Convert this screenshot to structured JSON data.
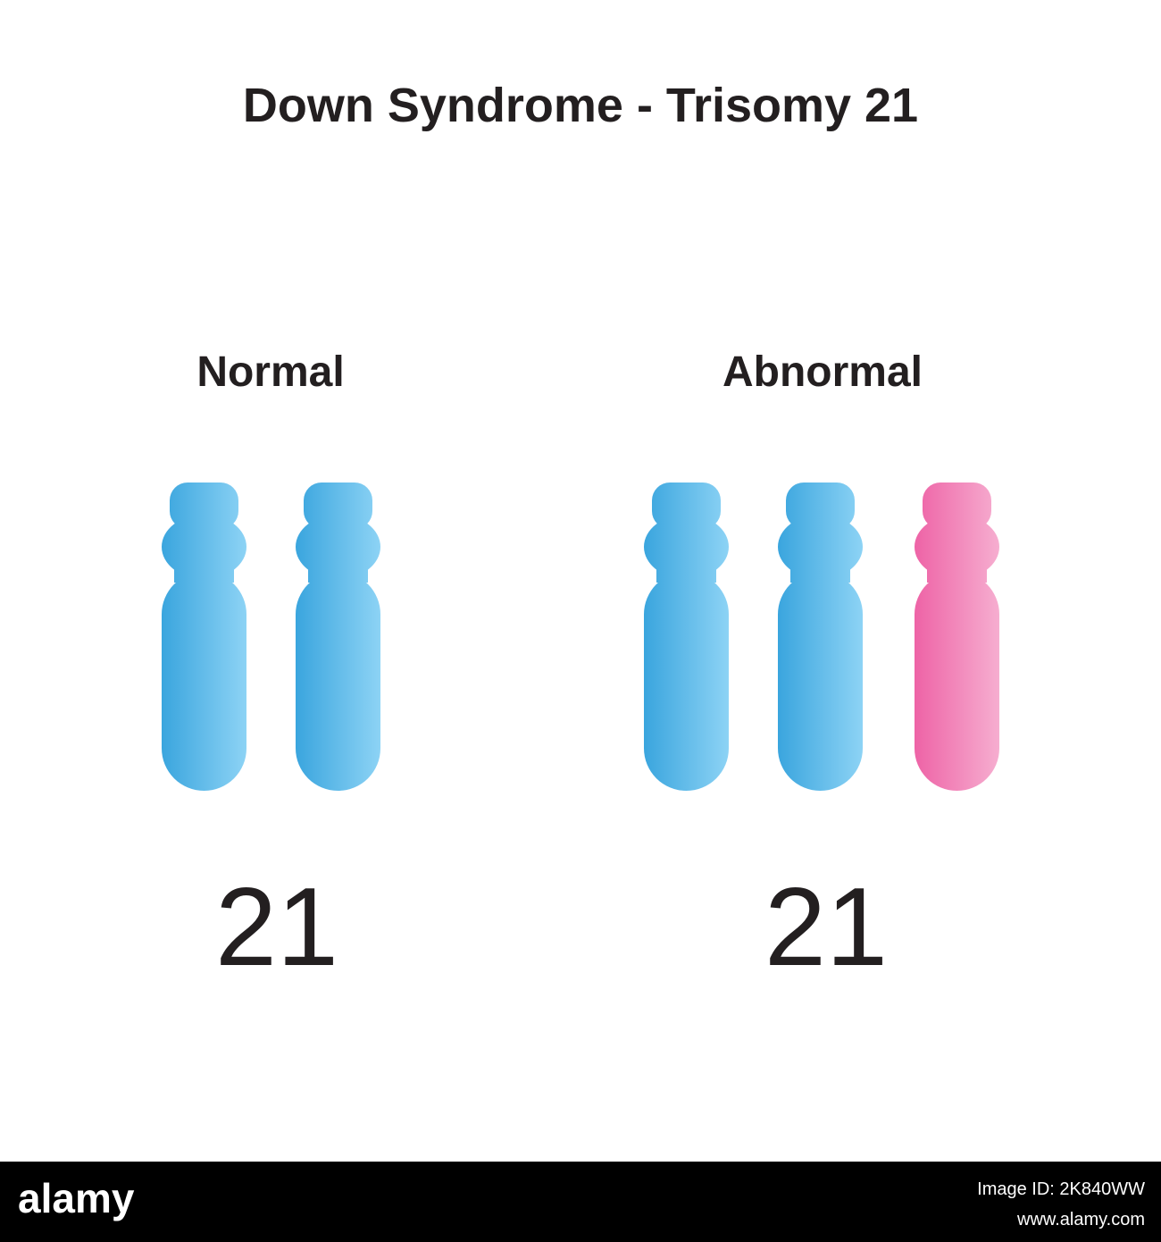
{
  "title": "Down Syndrome - Trisomy 21",
  "groups": [
    {
      "label": "Normal",
      "number": "21"
    },
    {
      "label": "Abnormal",
      "number": "21"
    }
  ],
  "footer": {
    "brand": "alamy",
    "image_id": "Image ID: 2K840WW",
    "url": "www.alamy.com"
  }
}
